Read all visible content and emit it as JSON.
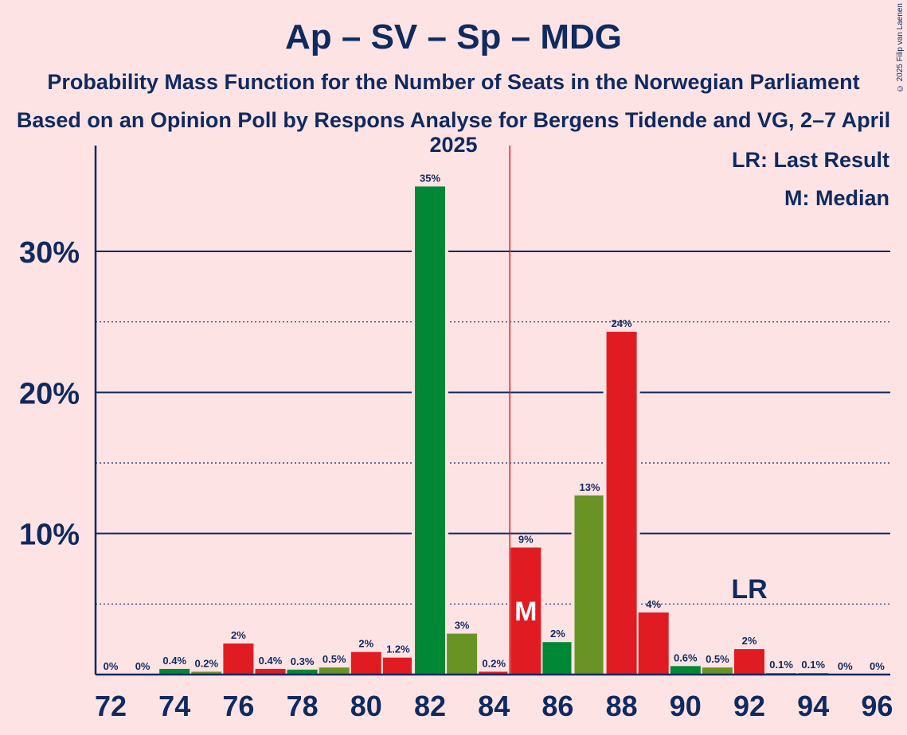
{
  "title": "Ap – SV – Sp – MDG",
  "subtitle1": "Probability Mass Function for the Number of Seats in the Norwegian Parliament",
  "subtitle2": "Based on an Opinion Poll by Respons Analyse for Bergens Tidende and VG, 2–7 April 2025",
  "copyright": "© 2025 Filip van Laenen",
  "legend": {
    "lr": "LR: Last Result",
    "m": "M: Median"
  },
  "markers": {
    "median_label": "M",
    "median_seat": 85,
    "last_result_label": "LR",
    "last_result_seat": 92
  },
  "colors": {
    "background": "#fde3e4",
    "text": "#0f2a5f",
    "green": "#008837",
    "olive": "#6a9325",
    "red": "#e11b22",
    "median_line": "#e11b22"
  },
  "chart_data": {
    "type": "bar",
    "ylim": [
      0,
      0.375
    ],
    "y_ticks": [
      {
        "value": 0.1,
        "label": "10%",
        "style": "solid"
      },
      {
        "value": 0.2,
        "label": "20%",
        "style": "solid"
      },
      {
        "value": 0.3,
        "label": "30%",
        "style": "solid"
      }
    ],
    "y_minor_ticks": [
      0.05,
      0.15,
      0.25
    ],
    "x_tick_labels": [
      "72",
      "74",
      "76",
      "78",
      "80",
      "82",
      "84",
      "86",
      "88",
      "90",
      "92",
      "94",
      "96"
    ],
    "bars": [
      {
        "seat": 72,
        "value": 0.0,
        "label": "0%",
        "color": "red"
      },
      {
        "seat": 73,
        "value": 0.0,
        "label": "0%",
        "color": "red"
      },
      {
        "seat": 74,
        "value": 0.004,
        "label": "0.4%",
        "color": "green"
      },
      {
        "seat": 75,
        "value": 0.002,
        "label": "0.2%",
        "color": "olive"
      },
      {
        "seat": 76,
        "value": 0.022,
        "label": "2%",
        "color": "red"
      },
      {
        "seat": 77,
        "value": 0.004,
        "label": "0.4%",
        "color": "red"
      },
      {
        "seat": 78,
        "value": 0.0035,
        "label": "0.3%",
        "color": "green"
      },
      {
        "seat": 79,
        "value": 0.005,
        "label": "0.5%",
        "color": "olive"
      },
      {
        "seat": 80,
        "value": 0.016,
        "label": "2%",
        "color": "red"
      },
      {
        "seat": 81,
        "value": 0.012,
        "label": "1.2%",
        "color": "red"
      },
      {
        "seat": 82,
        "value": 0.346,
        "label": "35%",
        "color": "green"
      },
      {
        "seat": 83,
        "value": 0.029,
        "label": "3%",
        "color": "olive"
      },
      {
        "seat": 84,
        "value": 0.002,
        "label": "0.2%",
        "color": "red"
      },
      {
        "seat": 85,
        "value": 0.09,
        "label": "9%",
        "color": "red"
      },
      {
        "seat": 86,
        "value": 0.023,
        "label": "2%",
        "color": "green"
      },
      {
        "seat": 87,
        "value": 0.127,
        "label": "13%",
        "color": "olive"
      },
      {
        "seat": 88,
        "value": 0.243,
        "label": "24%",
        "color": "red"
      },
      {
        "seat": 89,
        "value": 0.044,
        "label": "4%",
        "color": "red"
      },
      {
        "seat": 90,
        "value": 0.006,
        "label": "0.6%",
        "color": "green"
      },
      {
        "seat": 91,
        "value": 0.005,
        "label": "0.5%",
        "color": "olive"
      },
      {
        "seat": 92,
        "value": 0.018,
        "label": "2%",
        "color": "red"
      },
      {
        "seat": 93,
        "value": 0.001,
        "label": "0.1%",
        "color": "red"
      },
      {
        "seat": 94,
        "value": 0.001,
        "label": "0.1%",
        "color": "green"
      },
      {
        "seat": 95,
        "value": 0.0,
        "label": "0%",
        "color": "olive"
      },
      {
        "seat": 96,
        "value": 0.0,
        "label": "0%",
        "color": "red"
      }
    ]
  }
}
